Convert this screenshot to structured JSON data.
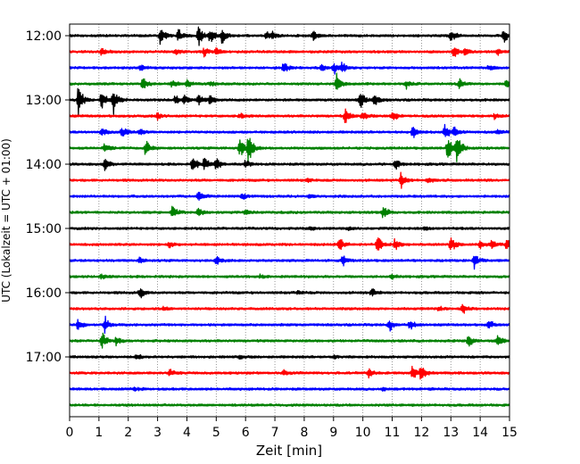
{
  "chart_data": {
    "type": "line",
    "title": "",
    "xlabel": "Zeit  [min]",
    "ylabel": "UTC (Lokalzeit = UTC + 01:00)",
    "xlim": [
      0,
      15
    ],
    "x_ticks": [
      "0",
      "1",
      "2",
      "3",
      "4",
      "5",
      "6",
      "7",
      "8",
      "9",
      "10",
      "11",
      "12",
      "13",
      "14",
      "15"
    ],
    "y_ticks": [
      "12:00",
      "13:00",
      "14:00",
      "15:00",
      "16:00",
      "17:00"
    ],
    "y_tick_trace_index": [
      0,
      4,
      8,
      12,
      16,
      20
    ],
    "trace_interval_min": 15,
    "grid": "vertical-dotted",
    "colors": [
      "#000000",
      "#ff0000",
      "#0000ff",
      "#008000"
    ],
    "traces": [
      {
        "start": "12:00",
        "color": "#000000",
        "events": [
          [
            3.1,
            1.0
          ],
          [
            3.7,
            0.9
          ],
          [
            4.4,
            1.3
          ],
          [
            4.8,
            0.8
          ],
          [
            5.2,
            0.7
          ],
          [
            6.7,
            0.5
          ],
          [
            6.9,
            0.5
          ],
          [
            8.3,
            0.6
          ],
          [
            13.0,
            0.7
          ],
          [
            14.8,
            0.7
          ]
        ]
      },
      {
        "start": "12:15",
        "color": "#ff0000",
        "events": [
          [
            1.1,
            0.5
          ],
          [
            3.6,
            0.4
          ],
          [
            4.6,
            0.5
          ],
          [
            5.0,
            0.4
          ],
          [
            13.1,
            0.6
          ],
          [
            13.5,
            0.5
          ],
          [
            14.6,
            0.4
          ]
        ]
      },
      {
        "start": "12:30",
        "color": "#0000ff",
        "events": [
          [
            2.4,
            0.3
          ],
          [
            7.3,
            0.6
          ],
          [
            8.6,
            0.4
          ],
          [
            9.0,
            0.7
          ],
          [
            9.3,
            0.5
          ],
          [
            14.3,
            0.3
          ]
        ]
      },
      {
        "start": "12:45",
        "color": "#008000",
        "events": [
          [
            2.5,
            0.7
          ],
          [
            3.5,
            0.4
          ],
          [
            4.0,
            0.4
          ],
          [
            4.8,
            0.3
          ],
          [
            9.1,
            1.0
          ],
          [
            11.5,
            0.5
          ],
          [
            13.3,
            0.5
          ],
          [
            14.9,
            0.4
          ]
        ]
      },
      {
        "start": "13:00",
        "color": "#000000",
        "events": [
          [
            0.3,
            1.6
          ],
          [
            1.1,
            1.2
          ],
          [
            1.5,
            1.8
          ],
          [
            3.6,
            0.5
          ],
          [
            3.9,
            0.6
          ],
          [
            4.4,
            0.7
          ],
          [
            4.8,
            0.5
          ],
          [
            9.9,
            1.0
          ],
          [
            10.4,
            0.8
          ]
        ]
      },
      {
        "start": "13:15",
        "color": "#ff0000",
        "events": [
          [
            3.0,
            0.3
          ],
          [
            5.8,
            0.3
          ],
          [
            9.4,
            0.8
          ],
          [
            10.0,
            0.5
          ],
          [
            11.0,
            0.7
          ],
          [
            14.5,
            0.3
          ]
        ]
      },
      {
        "start": "13:30",
        "color": "#0000ff",
        "events": [
          [
            1.1,
            0.5
          ],
          [
            1.8,
            0.7
          ],
          [
            2.4,
            0.3
          ],
          [
            11.7,
            0.7
          ],
          [
            12.8,
            0.8
          ],
          [
            13.1,
            0.5
          ],
          [
            14.6,
            0.3
          ]
        ]
      },
      {
        "start": "13:45",
        "color": "#008000",
        "events": [
          [
            1.2,
            0.5
          ],
          [
            2.6,
            0.8
          ],
          [
            5.8,
            1.2
          ],
          [
            6.1,
            1.6
          ],
          [
            12.9,
            1.3
          ],
          [
            13.2,
            1.8
          ]
        ]
      },
      {
        "start": "14:00",
        "color": "#000000",
        "events": [
          [
            1.2,
            0.7
          ],
          [
            4.2,
            0.9
          ],
          [
            4.6,
            0.8
          ],
          [
            5.0,
            0.7
          ],
          [
            6.0,
            0.4
          ],
          [
            11.1,
            0.6
          ]
        ]
      },
      {
        "start": "14:15",
        "color": "#ff0000",
        "events": [
          [
            8.1,
            0.2
          ],
          [
            11.3,
            0.8
          ],
          [
            12.2,
            0.3
          ]
        ]
      },
      {
        "start": "14:30",
        "color": "#0000ff",
        "events": [
          [
            4.4,
            0.8
          ],
          [
            5.9,
            0.4
          ],
          [
            8.2,
            0.2
          ]
        ]
      },
      {
        "start": "14:45",
        "color": "#008000",
        "events": [
          [
            3.5,
            0.8
          ],
          [
            4.4,
            0.6
          ],
          [
            6.0,
            0.3
          ],
          [
            10.7,
            0.8
          ]
        ]
      },
      {
        "start": "15:00",
        "color": "#000000",
        "events": [
          [
            8.2,
            0.2
          ],
          [
            9.5,
            0.2
          ],
          [
            12.1,
            0.2
          ]
        ]
      },
      {
        "start": "15:15",
        "color": "#ff0000",
        "events": [
          [
            3.4,
            0.4
          ],
          [
            9.2,
            0.8
          ],
          [
            10.5,
            0.9
          ],
          [
            11.1,
            0.6
          ],
          [
            13.0,
            0.9
          ],
          [
            14.0,
            0.4
          ],
          [
            14.4,
            0.6
          ],
          [
            14.9,
            0.7
          ]
        ]
      },
      {
        "start": "15:30",
        "color": "#0000ff",
        "events": [
          [
            2.4,
            0.3
          ],
          [
            5.0,
            0.4
          ],
          [
            9.3,
            0.6
          ],
          [
            13.8,
            0.8
          ]
        ]
      },
      {
        "start": "15:45",
        "color": "#008000",
        "events": [
          [
            1.1,
            0.3
          ],
          [
            6.5,
            0.2
          ],
          [
            11.0,
            0.2
          ]
        ]
      },
      {
        "start": "16:00",
        "color": "#000000",
        "events": [
          [
            2.4,
            0.6
          ],
          [
            7.8,
            0.2
          ],
          [
            10.3,
            0.5
          ]
        ]
      },
      {
        "start": "16:15",
        "color": "#ff0000",
        "events": [
          [
            3.2,
            0.2
          ],
          [
            12.6,
            0.2
          ],
          [
            13.4,
            0.8
          ]
        ]
      },
      {
        "start": "16:30",
        "color": "#0000ff",
        "events": [
          [
            0.3,
            0.7
          ],
          [
            1.2,
            0.9
          ],
          [
            10.9,
            0.7
          ],
          [
            11.6,
            0.5
          ],
          [
            14.3,
            0.5
          ]
        ]
      },
      {
        "start": "16:45",
        "color": "#008000",
        "events": [
          [
            1.1,
            0.9
          ],
          [
            1.6,
            0.5
          ],
          [
            13.6,
            0.8
          ],
          [
            14.6,
            0.7
          ]
        ]
      },
      {
        "start": "17:00",
        "color": "#000000",
        "events": [
          [
            2.3,
            0.3
          ],
          [
            5.8,
            0.2
          ],
          [
            9.0,
            0.2
          ]
        ]
      },
      {
        "start": "17:15",
        "color": "#ff0000",
        "events": [
          [
            3.4,
            0.4
          ],
          [
            7.3,
            0.3
          ],
          [
            10.2,
            0.4
          ],
          [
            11.7,
            0.9
          ],
          [
            12.0,
            1.0
          ]
        ]
      },
      {
        "start": "17:30",
        "color": "#0000ff",
        "events": [
          [
            2.2,
            0.2
          ],
          [
            10.7,
            0.2
          ]
        ]
      },
      {
        "start": "17:45",
        "color": "#008000",
        "events": []
      }
    ]
  }
}
